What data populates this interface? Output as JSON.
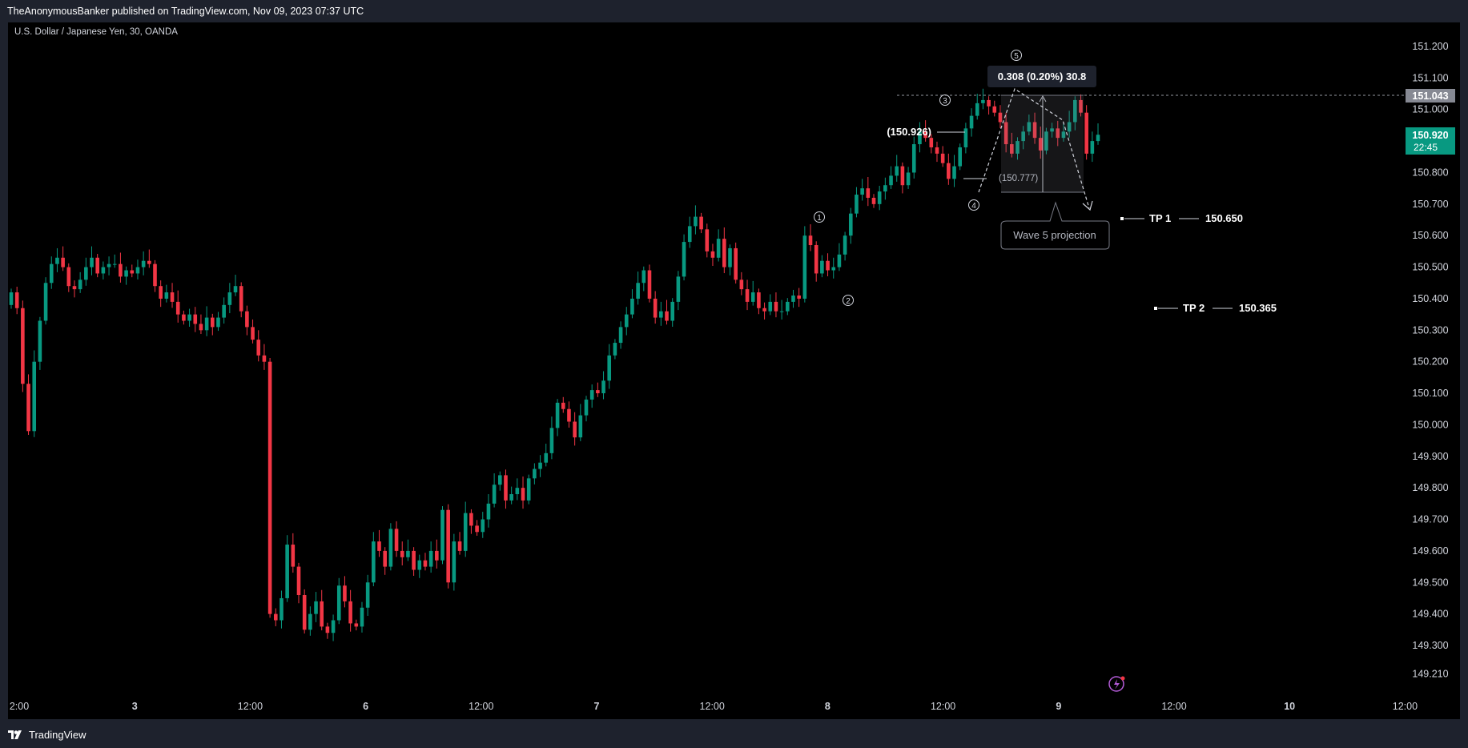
{
  "header": {
    "publish_line": "TheAnonymousBanker published on TradingView.com, Nov 09, 2023 07:37 UTC"
  },
  "symbol": {
    "label": "U.S. Dollar / Japanese Yen, 30, OANDA"
  },
  "footer": {
    "brand": "TradingView"
  },
  "colors": {
    "up": "#089981",
    "down": "#f23645",
    "background": "#000000",
    "panel": "#1e222d",
    "price_tag": "#089981",
    "hline_tag": "#868993"
  },
  "annotations": {
    "wave_labels": [
      "①",
      "②",
      "③",
      "④",
      "⑤"
    ],
    "label_150926": "(150.926)",
    "label_150777": "(150.777)",
    "measure_text": "0.308 (0.20%) 30.8",
    "projection_text": "Wave 5 projection",
    "tp1_label": "TP 1",
    "tp1_value": "150.650",
    "tp2_label": "TP 2",
    "tp2_value": "150.365"
  },
  "price_tags": {
    "hline_value": "151.043",
    "last_price": "150.920",
    "countdown": "22:45"
  },
  "chart_data": {
    "type": "candlestick",
    "title": "U.S. Dollar / Japanese Yen, 30, OANDA",
    "x_ticks": [
      "2:00",
      "3",
      "12:00",
      "6",
      "12:00",
      "7",
      "12:00",
      "8",
      "12:00",
      "9",
      "12:00",
      "10",
      "12:00"
    ],
    "y_ticks": [
      "151.200",
      "151.100",
      "151.000",
      "150.900",
      "150.800",
      "150.700",
      "150.600",
      "150.500",
      "150.400",
      "150.300",
      "150.200",
      "150.100",
      "150.000",
      "149.900",
      "149.800",
      "149.700",
      "149.600",
      "149.500",
      "149.400",
      "149.300",
      "149.210"
    ],
    "ylim": [
      149.2,
      151.2
    ],
    "grid": false,
    "series": [
      {
        "close": [
          150.42,
          150.37,
          150.13,
          149.98,
          150.2,
          150.33,
          150.45,
          150.51,
          150.53,
          150.5,
          150.44,
          150.43,
          150.46,
          150.5,
          150.53,
          150.48,
          150.5,
          150.51,
          150.51,
          150.47,
          150.49,
          150.48,
          150.5,
          150.52,
          150.51,
          150.44,
          150.4,
          150.42,
          150.39,
          150.35,
          150.33,
          150.35,
          150.32,
          150.3,
          150.34,
          150.31,
          150.34,
          150.38,
          150.42,
          150.44,
          150.36,
          150.31,
          150.27,
          150.22,
          150.2,
          149.4,
          149.38,
          149.45,
          149.62,
          149.55,
          149.46,
          149.35,
          149.4,
          149.44,
          149.36,
          149.34,
          149.38,
          149.49,
          149.44,
          149.37,
          149.36,
          149.42,
          149.5,
          149.63,
          149.6,
          149.55,
          149.67,
          149.6,
          149.58,
          149.6,
          149.54,
          149.57,
          149.55,
          149.6,
          149.57,
          149.73,
          149.5,
          149.63,
          149.6,
          149.72,
          149.68,
          149.66,
          149.7,
          149.75,
          149.81,
          149.84,
          149.76,
          149.78,
          149.8,
          149.76,
          149.83,
          149.86,
          149.88,
          149.91,
          149.99,
          150.07,
          150.05,
          150.01,
          149.96,
          150.03,
          150.08,
          150.11,
          150.1,
          150.14,
          150.22,
          150.26,
          150.31,
          150.35,
          150.4,
          150.45,
          150.49,
          150.4,
          150.34,
          150.36,
          150.33,
          150.39,
          150.47,
          150.58,
          150.63,
          150.66,
          150.62,
          150.55,
          150.53,
          150.59,
          150.5,
          150.56,
          150.46,
          150.43,
          150.39,
          150.42,
          150.37,
          150.36,
          150.39,
          150.36,
          150.36,
          150.39,
          150.41,
          150.4,
          150.6,
          150.57,
          150.48,
          150.52,
          150.49,
          150.5,
          150.54,
          150.6,
          150.67,
          150.73,
          150.75,
          150.72,
          150.7,
          150.74,
          150.76,
          150.79,
          150.82,
          150.76,
          150.8,
          150.89,
          150.93,
          150.91,
          150.88,
          150.86,
          150.83,
          150.78,
          150.82,
          150.88,
          150.94,
          150.98,
          151.02,
          151.03,
          151.01,
          150.99,
          150.96,
          150.89,
          150.86,
          150.9,
          150.93,
          150.96,
          150.91,
          150.87,
          150.93,
          150.94,
          150.91,
          150.93,
          150.96,
          151.03,
          150.99,
          150.86,
          150.9,
          150.92
        ]
      }
    ]
  }
}
